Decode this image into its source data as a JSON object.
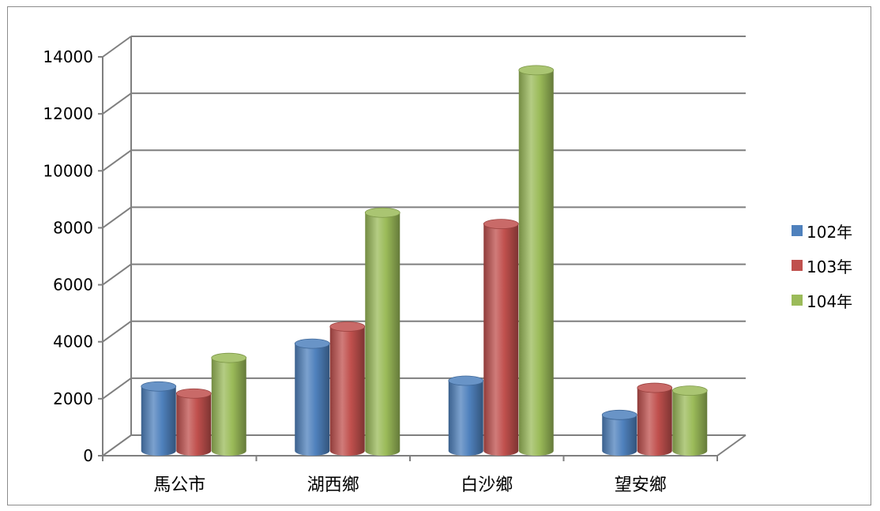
{
  "chart_data": {
    "type": "bar",
    "title": "",
    "xlabel": "",
    "ylabel": "",
    "categories": [
      "馬公市",
      "湖西鄉",
      "白沙鄉",
      "望安鄉"
    ],
    "series": [
      {
        "name": "102年",
        "color": "#4f81bd",
        "values": [
          2100,
          3600,
          2300,
          1100
        ]
      },
      {
        "name": "103年",
        "color": "#c0504d",
        "values": [
          1850,
          4200,
          7800,
          2050
        ]
      },
      {
        "name": "104年",
        "color": "#9bbb59",
        "values": [
          3100,
          8200,
          13200,
          1950
        ]
      }
    ],
    "y_ticks": [
      "0",
      "2000",
      "4000",
      "6000",
      "8000",
      "10000",
      "12000",
      "14000"
    ],
    "ylim": [
      0,
      14000
    ],
    "grid": true,
    "legend_position": "right",
    "style": "3d-cylinder"
  }
}
